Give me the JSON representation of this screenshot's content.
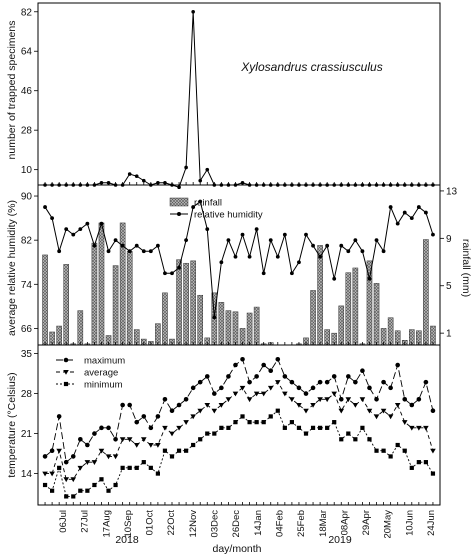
{
  "figure": {
    "species": "Xylosandrus crassiusculus",
    "xlabel": "day/month",
    "years": [
      "2018",
      "2019"
    ],
    "dates": [
      "06Jul",
      "27Jul",
      "17Aug",
      "10Sep",
      "01Oct",
      "22Oct",
      "12Nov",
      "03Dec",
      "26Dec",
      "14Jan",
      "04Feb",
      "25Feb",
      "18Mar",
      "08Apr",
      "29Apr",
      "20May",
      "10Jun",
      "24Jun"
    ]
  },
  "chart_data": [
    {
      "type": "line",
      "ylabel": "number of trapped specimens",
      "yticks": [
        10,
        28,
        46,
        64,
        82
      ],
      "ylim": [
        3,
        86
      ],
      "annotation": "Xylosandrus crassiusculus",
      "series": [
        {
          "values": [
            3,
            3,
            3,
            3,
            3,
            3,
            3,
            3,
            4,
            4,
            3,
            3,
            8,
            7,
            5,
            3,
            4,
            4,
            3,
            2,
            11,
            82,
            5,
            10,
            3,
            3,
            3,
            3,
            4,
            3,
            3,
            3,
            3,
            3,
            3,
            3,
            3,
            3,
            3,
            3,
            3,
            3,
            3,
            3,
            3,
            3,
            3,
            3,
            3,
            3,
            3,
            3,
            3,
            3,
            3,
            3
          ]
        }
      ]
    },
    {
      "type": "bar",
      "ylabel": "average relative humidity (%)",
      "y2label": "rainfall (mm)",
      "yticks": [
        66,
        74,
        82,
        90
      ],
      "ylim": [
        63,
        92
      ],
      "y2ticks": [
        1,
        5,
        9,
        13
      ],
      "y2lim": [
        0,
        13.5
      ],
      "legend": [
        "rainfall",
        "relative humidity"
      ],
      "legend_position": "top-center",
      "series": [
        {
          "name": "rainfall",
          "values": [
            7.6,
            1.1,
            1.6,
            6.8,
            0.1,
            2.9,
            0.1,
            8.6,
            10.3,
            0.8,
            6.7,
            10.3,
            7.9,
            1.3,
            0.5,
            0.3,
            1.8,
            4.4,
            0.5,
            7.2,
            6.9,
            7.1,
            4.2,
            0.6,
            4.4,
            3.6,
            2.9,
            2.8,
            1.4,
            2.7,
            3.2,
            0.1,
            0.2,
            0,
            0,
            0,
            0.1,
            0.6,
            4.6,
            8.4,
            1.3,
            1.0,
            3.3,
            6.1,
            6.5,
            0.1,
            7.1,
            5.2,
            1.4,
            2.3,
            1.2,
            0.4,
            1.3,
            1.2,
            8.9,
            1.6
          ]
        },
        {
          "name": "relative humidity",
          "values": [
            88,
            86,
            80,
            84,
            83,
            84,
            85,
            81,
            85,
            80,
            82,
            81,
            80,
            81,
            80,
            80,
            81,
            76,
            76,
            77,
            82,
            88,
            89,
            84,
            68,
            78,
            82,
            79,
            83,
            79,
            84,
            76,
            82,
            79,
            83,
            76,
            78,
            83,
            81,
            79,
            81,
            75,
            81,
            80,
            82,
            80,
            75,
            82,
            80,
            88,
            85,
            87,
            86,
            88,
            87,
            83
          ]
        }
      ]
    },
    {
      "type": "line",
      "ylabel": "temperature (°Celsius)",
      "yticks": [
        14,
        21,
        28,
        35
      ],
      "ylim": [
        8.5,
        36.5
      ],
      "legend": [
        "maximum",
        "average",
        "minimum"
      ],
      "legend_position": "top-left",
      "series": [
        {
          "name": "maximum",
          "values": [
            17,
            18,
            24,
            16,
            17,
            20,
            19,
            21,
            22,
            22,
            20,
            26,
            26,
            23,
            24,
            22,
            24,
            27,
            25,
            26,
            27,
            29,
            30,
            31,
            28,
            29,
            31,
            33,
            34,
            30,
            31,
            33,
            32,
            34,
            31,
            30,
            29,
            28,
            29,
            30,
            30,
            31,
            27,
            31,
            30,
            32,
            29,
            27,
            30,
            29,
            33,
            27,
            26,
            27,
            30,
            25
          ]
        },
        {
          "name": "average",
          "values": [
            14,
            14,
            18,
            13,
            13,
            15,
            16,
            16,
            18,
            17,
            17,
            20,
            20,
            19,
            20,
            19,
            19,
            22,
            21,
            22,
            23,
            24,
            25,
            26,
            25,
            26,
            27,
            28,
            29,
            27,
            28,
            28,
            29,
            30,
            28,
            27,
            26,
            25,
            26,
            27,
            27,
            28,
            25,
            27,
            26,
            27,
            25,
            24,
            25,
            24,
            26,
            23,
            22,
            22,
            22,
            18
          ]
        },
        {
          "name": "minimum",
          "values": [
            12,
            11,
            15,
            10,
            10,
            11,
            11,
            12,
            13,
            11,
            12,
            15,
            15,
            15,
            16,
            15,
            14,
            18,
            17,
            18,
            18,
            19,
            20,
            21,
            21,
            22,
            22,
            23,
            24,
            23,
            23,
            23,
            24,
            25,
            22,
            23,
            22,
            21,
            22,
            22,
            22,
            23,
            20,
            21,
            20,
            22,
            20,
            18,
            18,
            17,
            19,
            18,
            15,
            16,
            16,
            14
          ]
        }
      ]
    }
  ]
}
